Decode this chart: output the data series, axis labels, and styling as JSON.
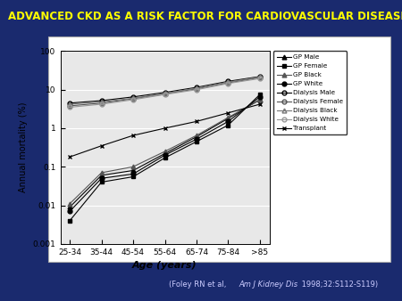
{
  "background_color": "#1a2a6e",
  "title": "ADVANCED CKD AS A RISK FACTOR FOR CARDIOVASCULAR DISEASE",
  "title_color": "#ffff00",
  "title_fontsize": 8.5,
  "citation_color": "#ccccff",
  "xlabel": "Age (years)",
  "ylabel": "Annual mortality (%)",
  "categories": [
    "25-34",
    "35-44",
    "45-54",
    "55-64",
    "65-74",
    "75-84",
    ">85"
  ],
  "x": [
    0,
    1,
    2,
    3,
    4,
    5,
    6
  ],
  "series": [
    {
      "label": "GP Male",
      "marker": "^",
      "fillstyle": "full",
      "color": "#000000",
      "linestyle": "-",
      "values": [
        0.009,
        0.06,
        0.08,
        0.22,
        0.6,
        1.8,
        5.5
      ]
    },
    {
      "label": "GP Female",
      "marker": "s",
      "fillstyle": "full",
      "color": "#000000",
      "linestyle": "-",
      "values": [
        0.004,
        0.04,
        0.055,
        0.17,
        0.45,
        1.2,
        7.5
      ]
    },
    {
      "label": "GP Black",
      "marker": "^",
      "fillstyle": "full",
      "color": "#555555",
      "linestyle": "-",
      "values": [
        0.011,
        0.07,
        0.1,
        0.25,
        0.65,
        1.9,
        5.5
      ]
    },
    {
      "label": "GP White",
      "marker": "o",
      "fillstyle": "full",
      "color": "#000000",
      "linestyle": "-",
      "values": [
        0.007,
        0.05,
        0.065,
        0.2,
        0.52,
        1.5,
        6.5
      ]
    },
    {
      "label": "Dialysis Male",
      "marker": "o",
      "fillstyle": "none",
      "color": "#000000",
      "linestyle": "-",
      "values": [
        4.5,
        5.2,
        6.5,
        8.5,
        11.5,
        16.5,
        22.0
      ]
    },
    {
      "label": "Dialysis Female",
      "marker": "o",
      "fillstyle": "none",
      "color": "#555555",
      "linestyle": "-",
      "values": [
        3.8,
        4.5,
        5.8,
        7.8,
        10.5,
        15.0,
        20.5
      ]
    },
    {
      "label": "Dialysis Black",
      "marker": "^",
      "fillstyle": "none",
      "color": "#777777",
      "linestyle": "-",
      "values": [
        4.2,
        4.8,
        6.0,
        8.0,
        11.0,
        15.8,
        21.5
      ]
    },
    {
      "label": "Dialysis White",
      "marker": "o",
      "fillstyle": "none",
      "color": "#999999",
      "linestyle": "-",
      "values": [
        3.5,
        4.2,
        5.5,
        7.5,
        10.0,
        14.5,
        19.5
      ]
    },
    {
      "label": "Transplant",
      "marker": "x",
      "fillstyle": "none",
      "color": "#000000",
      "linestyle": "-",
      "values": [
        0.18,
        0.35,
        0.65,
        1.0,
        1.5,
        2.5,
        4.2
      ]
    }
  ],
  "ylim_log": [
    0.001,
    100
  ],
  "yticks": [
    0.001,
    0.01,
    0.1,
    1,
    10,
    100
  ]
}
